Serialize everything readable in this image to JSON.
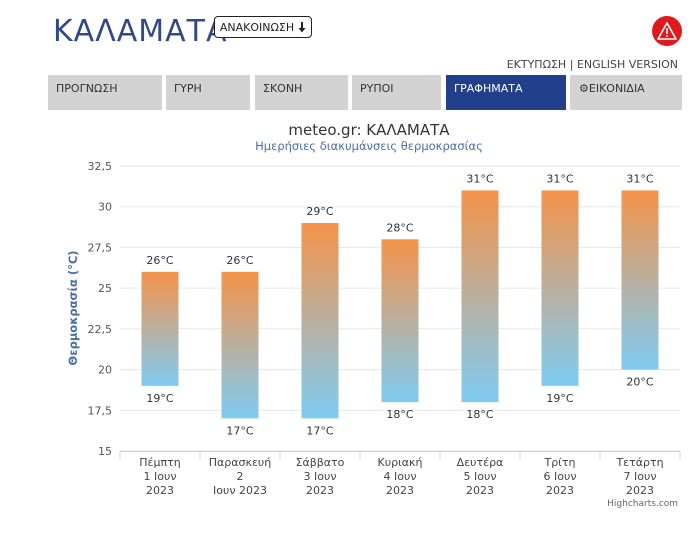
{
  "header": {
    "city": "ΚΑΛΑΜΑΤΑ",
    "announcement_label": "ΑΝΑΚΟΙΝΩΣΗ",
    "print_label": "ΕΚΤΥΠΩΣΗ",
    "separator": "|",
    "english_label": "ENGLISH VERSION",
    "alert_icon": "warning-triangle-icon",
    "alert_color": "#e0191f"
  },
  "tabs": [
    {
      "label": "ΠΡΟΓΝΩΣΗ",
      "active": false
    },
    {
      "label": "ΓΥΡΗ",
      "active": false
    },
    {
      "label": "ΣΚΟΝΗ",
      "active": false
    },
    {
      "label": "ΡΥΠΟΙ",
      "active": false
    },
    {
      "label": "ΓΡΑΦΗΜΑΤΑ",
      "active": true
    },
    {
      "label": "ΕΙΚΟΝΙΔΙΑ",
      "active": false,
      "icon": "gear-icon"
    }
  ],
  "chart_data": {
    "type": "bar",
    "title": "meteo.gr: ΚΑΛΑΜΑΤΑ",
    "subtitle": "Ημερήσιες διακυμάνσεις θερμοκρασίας",
    "ylabel": "Θερμοκρασία (°C)",
    "ylim": [
      15,
      32.5
    ],
    "yticks": [
      "15",
      "17,5",
      "20",
      "22,5",
      "25",
      "27,5",
      "30",
      "32,5"
    ],
    "categories": [
      [
        "Πέμπτη",
        "1 Ιουν",
        "2023"
      ],
      [
        "Παρασκευή",
        "2",
        "Ιουν 2023"
      ],
      [
        "Σάββατο",
        "3 Ιουν",
        "2023"
      ],
      [
        "Κυριακή",
        "4 Ιουν",
        "2023"
      ],
      [
        "Δευτέρα",
        "5 Ιουν",
        "2023"
      ],
      [
        "Τρίτη",
        "6 Ιουν",
        "2023"
      ],
      [
        "Τετάρτη",
        "7 Ιουν",
        "2023"
      ]
    ],
    "series": [
      {
        "low": 19,
        "high": 26,
        "low_label": "19°C",
        "high_label": "26°C"
      },
      {
        "low": 17,
        "high": 26,
        "low_label": "17°C",
        "high_label": "26°C"
      },
      {
        "low": 17,
        "high": 29,
        "low_label": "17°C",
        "high_label": "29°C"
      },
      {
        "low": 18,
        "high": 28,
        "low_label": "18°C",
        "high_label": "28°C"
      },
      {
        "low": 18,
        "high": 31,
        "low_label": "18°C",
        "high_label": "31°C"
      },
      {
        "low": 19,
        "high": 31,
        "low_label": "19°C",
        "high_label": "31°C"
      },
      {
        "low": 20,
        "high": 31,
        "low_label": "20°C",
        "high_label": "31°C"
      }
    ],
    "gradient_colors": {
      "top": "#f5934a",
      "bottom": "#7fcbf2"
    },
    "credit": "Highcharts.com",
    "grid": true
  }
}
